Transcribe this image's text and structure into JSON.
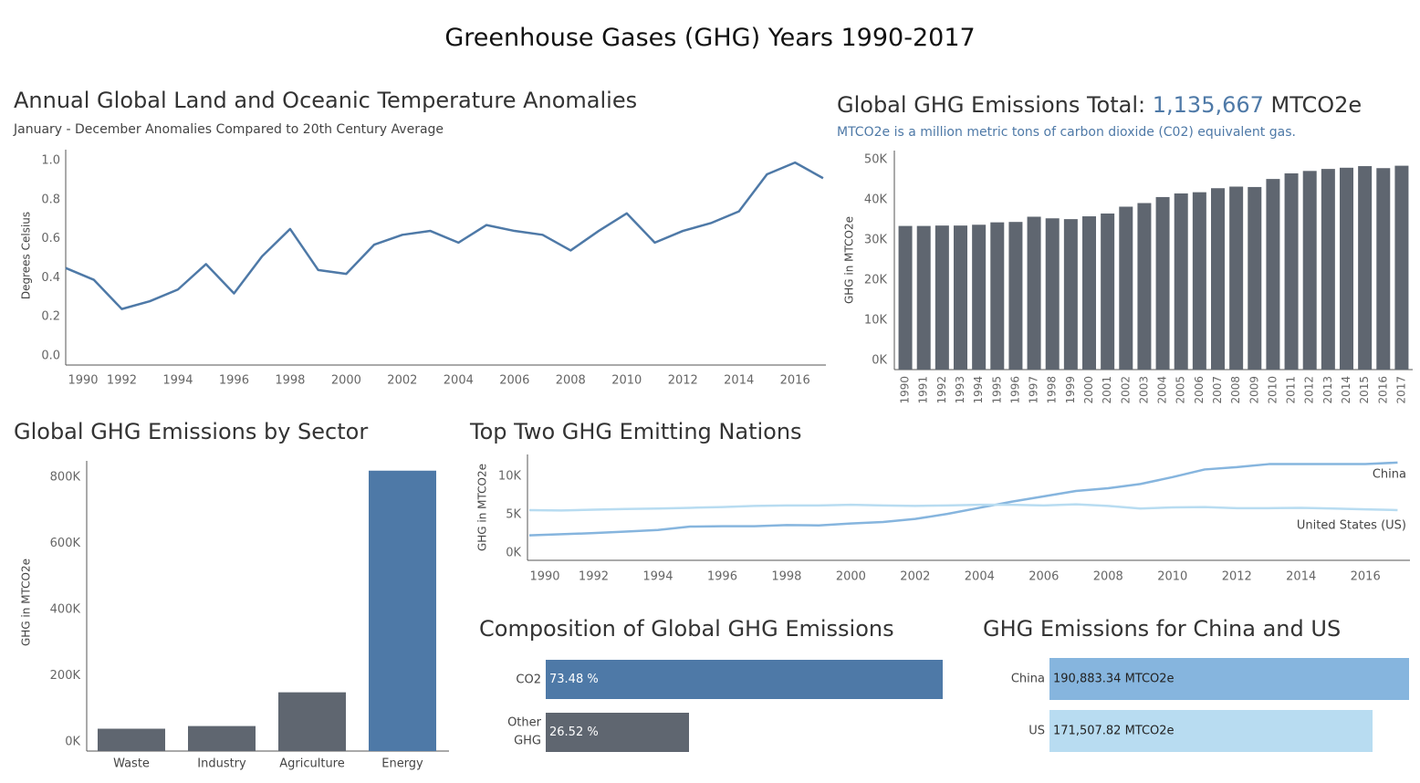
{
  "dashboard_title": "Greenhouse Gases (GHG) Years 1990-2017",
  "colors": {
    "blue": "#4e79a7",
    "gray": "#5f6670",
    "light_blue": "#86b5de",
    "lighter_blue": "#b8dcf1"
  },
  "temp": {
    "title": "Annual Global Land and Oceanic Temperature Anomalies",
    "subtitle": "January - December Anomalies Compared to 20th Century Average"
  },
  "total": {
    "title_prefix": "Global GHG Emissions Total: ",
    "total_value": "1,135,667",
    "title_suffix": " MTCO2e",
    "subtitle": "MTCO2e is a million metric tons of carbon dioxide (C02) equivalent gas."
  },
  "sector": {
    "title": "Global GHG Emissions by Sector"
  },
  "nations": {
    "title": "Top Two GHG Emitting Nations"
  },
  "composition": {
    "title": "Composition of Global GHG Emissions"
  },
  "chinaus": {
    "title": "GHG Emissions for China and US"
  },
  "chart_data": [
    {
      "id": "temperature",
      "type": "line",
      "title": "Annual Global Land and Oceanic Temperature Anomalies",
      "subtitle": "January - December Anomalies Compared to 20th Century Average",
      "ylabel": "Degrees Celsius",
      "ylim": [
        0.0,
        1.0
      ],
      "yticks": [
        "0.0",
        "0.2",
        "0.4",
        "0.6",
        "0.8",
        "1.0"
      ],
      "xticks": [
        "1990",
        "1992",
        "1994",
        "1996",
        "1998",
        "2000",
        "2002",
        "2004",
        "2006",
        "2008",
        "2010",
        "2012",
        "2014",
        "2016"
      ],
      "x": [
        1990,
        1991,
        1992,
        1993,
        1994,
        1995,
        1996,
        1997,
        1998,
        1999,
        2000,
        2001,
        2002,
        2003,
        2004,
        2005,
        2006,
        2007,
        2008,
        2009,
        2010,
        2011,
        2012,
        2013,
        2014,
        2015,
        2016,
        2017
      ],
      "values": [
        0.45,
        0.39,
        0.24,
        0.28,
        0.34,
        0.47,
        0.32,
        0.51,
        0.65,
        0.44,
        0.42,
        0.57,
        0.62,
        0.64,
        0.58,
        0.67,
        0.64,
        0.62,
        0.54,
        0.64,
        0.73,
        0.58,
        0.64,
        0.68,
        0.74,
        0.93,
        0.99,
        0.91
      ],
      "grid": false
    },
    {
      "id": "global_total",
      "type": "bar",
      "ylabel": "GHG in MTCO2e",
      "ylim": [
        0,
        50000
      ],
      "yticks": [
        "0K",
        "10K",
        "20K",
        "30K",
        "40K",
        "50K"
      ],
      "categories": [
        "1990",
        "1991",
        "1992",
        "1993",
        "1994",
        "1995",
        "1996",
        "1997",
        "1998",
        "1999",
        "2000",
        "2001",
        "2002",
        "2003",
        "2004",
        "2005",
        "2006",
        "2007",
        "2008",
        "2009",
        "2010",
        "2011",
        "2012",
        "2013",
        "2014",
        "2015",
        "2016",
        "2017"
      ],
      "values": [
        33500,
        33500,
        33600,
        33600,
        33800,
        34400,
        34500,
        35800,
        35400,
        35200,
        35900,
        36600,
        38300,
        39200,
        40700,
        41600,
        41900,
        42900,
        43300,
        43200,
        45200,
        46600,
        47200,
        47700,
        48000,
        48400,
        47900,
        48500
      ]
    },
    {
      "id": "sector",
      "type": "bar",
      "title": "Global GHG Emissions by Sector",
      "ylabel": "GHG in MTCO2e",
      "ylim": [
        0,
        850000
      ],
      "yticks": [
        "0K",
        "200K",
        "400K",
        "600K",
        "800K"
      ],
      "categories": [
        "Waste",
        "Industry",
        "Agriculture",
        "Energy"
      ],
      "values": [
        40000,
        48000,
        150000,
        820000
      ],
      "highlight": "Energy"
    },
    {
      "id": "nations",
      "type": "line",
      "title": "Top Two GHG Emitting Nations",
      "ylabel": "GHG in MTCO2e",
      "ylim": [
        0,
        11500
      ],
      "yticks": [
        "0K",
        "5K",
        "10K"
      ],
      "xticks": [
        "1990",
        "1992",
        "1994",
        "1996",
        "1998",
        "2000",
        "2002",
        "2004",
        "2006",
        "2008",
        "2010",
        "2012",
        "2014",
        "2016"
      ],
      "x": [
        1990,
        1991,
        1992,
        1993,
        1994,
        1995,
        1996,
        1997,
        1998,
        1999,
        2000,
        2001,
        2002,
        2003,
        2004,
        2005,
        2006,
        2007,
        2008,
        2009,
        2010,
        2011,
        2012,
        2013,
        2014,
        2015,
        2016,
        2017
      ],
      "series": [
        {
          "name": "China",
          "values": [
            2300,
            2450,
            2600,
            2800,
            3000,
            3450,
            3500,
            3500,
            3650,
            3600,
            3850,
            4050,
            4450,
            5100,
            5900,
            6700,
            7400,
            8100,
            8450,
            9000,
            9900,
            10900,
            11200,
            11600,
            11600,
            11600,
            11600,
            11800
          ]
        },
        {
          "name": "United States (US)",
          "values": [
            5600,
            5550,
            5650,
            5750,
            5800,
            5900,
            6000,
            6150,
            6200,
            6200,
            6300,
            6200,
            6150,
            6200,
            6300,
            6300,
            6200,
            6350,
            6150,
            5800,
            5950,
            6000,
            5850,
            5850,
            5900,
            5800,
            5700,
            5600
          ]
        }
      ]
    },
    {
      "id": "composition",
      "type": "bar",
      "title": "Composition of Global GHG Emissions",
      "orientation": "horizontal",
      "categories": [
        "CO2",
        "Other GHG"
      ],
      "values": [
        73.48,
        26.52
      ],
      "labels": [
        "73.48 %",
        "26.52 %"
      ]
    },
    {
      "id": "china_us",
      "type": "bar",
      "title": "GHG Emissions for China and US",
      "orientation": "horizontal",
      "categories": [
        "China",
        "US"
      ],
      "values": [
        190883.34,
        171507.82
      ],
      "labels": [
        "190,883.34 MTCO2e",
        "171,507.82 MTCO2e"
      ]
    }
  ]
}
